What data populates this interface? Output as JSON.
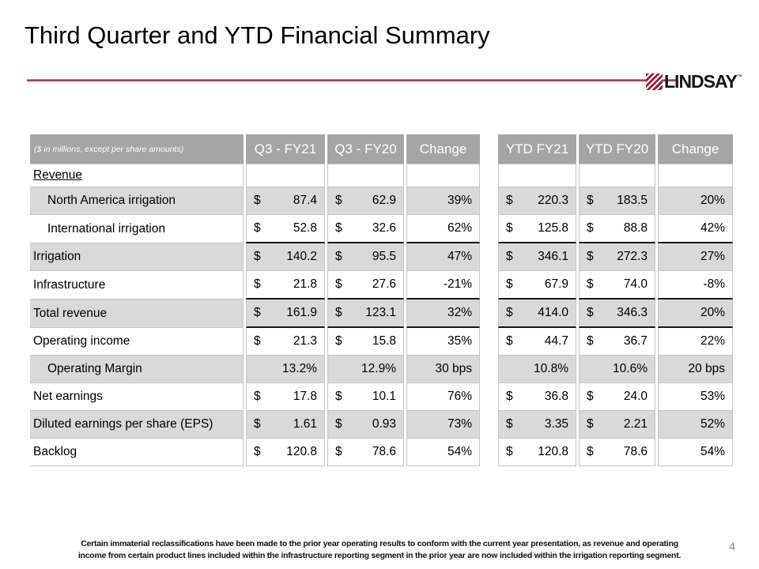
{
  "title": "Third Quarter and YTD Financial Summary",
  "page_number": "4",
  "logo": {
    "text": "LINDSAY",
    "trademark": "™"
  },
  "footer": {
    "line1": "Certain immaterial reclassifications have been made to the prior year operating results to conform with the current year presentation, as revenue and operating",
    "line2": "income from certain product lines included within the infrastructure reporting segment in the prior year are now included within the irrigation reporting segment."
  },
  "colors": {
    "accent_maroon": "#8E1730",
    "logo_maroon": "#A21E35",
    "header_gray": "#A5A5A5",
    "row_shaded_gray": "#D9D9D9",
    "border_gray": "#C4C4C4",
    "sum_line_black": "#161616",
    "page_number_gray": "#8A8A8A"
  },
  "table": {
    "note": "($ in millions, except per share amounts)",
    "currency_symbol": "$",
    "q3_headers": [
      "Q3 - FY21",
      "Q3 - FY20",
      "Change"
    ],
    "ytd_headers": [
      "YTD FY21",
      "YTD FY20",
      "Change"
    ],
    "rows": [
      {
        "label": "Revenue",
        "underline": true,
        "indent": 0,
        "shaded": false,
        "sumline": false,
        "dollar": false,
        "q3fy21": "",
        "q3fy20": "",
        "q3change": "",
        "ytdfy21": "",
        "ytdfy20": "",
        "ytdchange": ""
      },
      {
        "label": "North America irrigation",
        "underline": false,
        "indent": 1,
        "shaded": true,
        "sumline": false,
        "dollar": true,
        "q3fy21": "87.4",
        "q3fy20": "62.9",
        "q3change": "39%",
        "ytdfy21": "220.3",
        "ytdfy20": "183.5",
        "ytdchange": "20%"
      },
      {
        "label": "International irrigation",
        "underline": false,
        "indent": 1,
        "shaded": false,
        "sumline": true,
        "dollar": true,
        "q3fy21": "52.8",
        "q3fy20": "32.6",
        "q3change": "62%",
        "ytdfy21": "125.8",
        "ytdfy20": "88.8",
        "ytdchange": "42%"
      },
      {
        "label": "Irrigation",
        "underline": false,
        "indent": 0,
        "shaded": true,
        "sumline": false,
        "dollar": true,
        "q3fy21": "140.2",
        "q3fy20": "95.5",
        "q3change": "47%",
        "ytdfy21": "346.1",
        "ytdfy20": "272.3",
        "ytdchange": "27%"
      },
      {
        "label": "Infrastructure",
        "underline": false,
        "indent": 0,
        "shaded": false,
        "sumline": true,
        "dollar": true,
        "q3fy21": "21.8",
        "q3fy20": "27.6",
        "q3change": "-21%",
        "ytdfy21": "67.9",
        "ytdfy20": "74.0",
        "ytdchange": "-8%"
      },
      {
        "label": "Total revenue",
        "underline": false,
        "indent": 0,
        "shaded": true,
        "sumline": true,
        "dollar": true,
        "q3fy21": "161.9",
        "q3fy20": "123.1",
        "q3change": "32%",
        "ytdfy21": "414.0",
        "ytdfy20": "346.3",
        "ytdchange": "20%"
      },
      {
        "label": "Operating income",
        "underline": false,
        "indent": 0,
        "shaded": false,
        "sumline": false,
        "dollar": true,
        "q3fy21": "21.3",
        "q3fy20": "15.8",
        "q3change": "35%",
        "ytdfy21": "44.7",
        "ytdfy20": "36.7",
        "ytdchange": "22%"
      },
      {
        "label": "Operating Margin",
        "underline": false,
        "indent": 1,
        "shaded": true,
        "sumline": false,
        "dollar": false,
        "q3fy21": "13.2%",
        "q3fy20": "12.9%",
        "q3change": "30 bps",
        "ytdfy21": "10.8%",
        "ytdfy20": "10.6%",
        "ytdchange": "20 bps"
      },
      {
        "label": "Net earnings",
        "underline": false,
        "indent": 0,
        "shaded": false,
        "sumline": false,
        "dollar": true,
        "q3fy21": "17.8",
        "q3fy20": "10.1",
        "q3change": "76%",
        "ytdfy21": "36.8",
        "ytdfy20": "24.0",
        "ytdchange": "53%"
      },
      {
        "label": "Diluted earnings per share (EPS)",
        "underline": false,
        "indent": 0,
        "shaded": true,
        "sumline": false,
        "dollar": true,
        "q3fy21": "1.61",
        "q3fy20": "0.93",
        "q3change": "73%",
        "ytdfy21": "3.35",
        "ytdfy20": "2.21",
        "ytdchange": "52%"
      },
      {
        "label": "Backlog",
        "underline": false,
        "indent": 0,
        "shaded": false,
        "sumline": false,
        "dollar": true,
        "q3fy21": "120.8",
        "q3fy20": "78.6",
        "q3change": "54%",
        "ytdfy21": "120.8",
        "ytdfy20": "78.6",
        "ytdchange": "54%"
      }
    ]
  }
}
